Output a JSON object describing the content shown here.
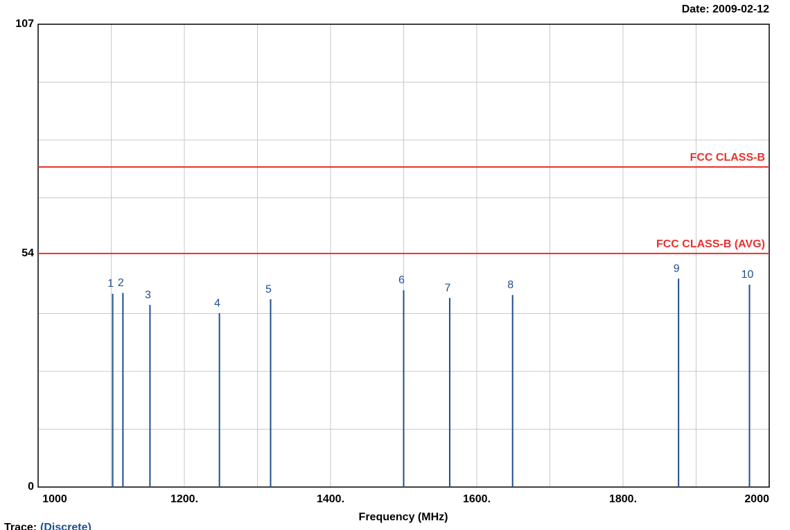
{
  "chart_data": {
    "type": "stem",
    "date": "Date: 2009-02-12",
    "xlabel": "Frequency (MHz)",
    "trace_label": "Trace:",
    "trace_value": "(Discrete)",
    "xlim": [
      1000,
      2000
    ],
    "xticks": [
      1000,
      {
        "value": 1200,
        "label": "1200."
      },
      {
        "value": 1400,
        "label": "1400."
      },
      {
        "value": 1600,
        "label": "1600."
      },
      {
        "value": 1800,
        "label": "1800."
      },
      2000
    ],
    "xminor": [
      1100,
      1300,
      1500,
      1700,
      1900
    ],
    "ylim": [
      0,
      107
    ],
    "yticks": [
      0,
      54,
      107
    ],
    "yminor": [
      13.375,
      26.75,
      40.125,
      66.875,
      80.25,
      93.625
    ],
    "grid": true,
    "color": "#1f4e8c",
    "x": [
      1102,
      1116,
      1153,
      1248,
      1318,
      1500,
      1563,
      1649,
      1876,
      1973
    ],
    "values": [
      44.7,
      44.9,
      42.1,
      40.2,
      43.4,
      45.5,
      43.7,
      44.4,
      48.2,
      46.8
    ],
    "labels": [
      "1",
      "2",
      "3",
      "4",
      "5",
      "6",
      "7",
      "8",
      "9",
      "10"
    ],
    "limits": [
      {
        "name": "FCC CLASS-B",
        "value": 74,
        "color": "#e8312f"
      },
      {
        "name": "FCC CLASS-B (AVG)",
        "value": 54,
        "color": "#e8312f"
      }
    ]
  }
}
